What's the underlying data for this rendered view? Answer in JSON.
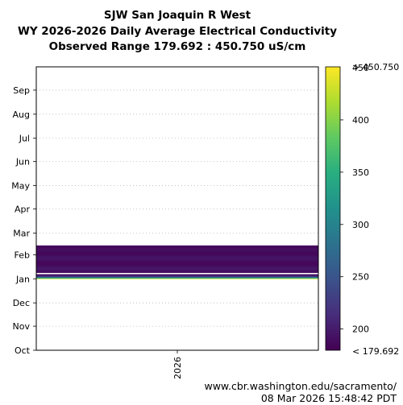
{
  "chart_data": {
    "type": "heatmap",
    "title_lines": [
      "SJW San Joaquin R West",
      "WY 2026-2026 Daily Average Electrical Conductivity",
      "Observed Range 179.692 : 450.750 uS/cm"
    ],
    "x_ticks": [
      "2026"
    ],
    "y_ticks": [
      "Oct",
      "Nov",
      "Dec",
      "Jan",
      "Feb",
      "Mar",
      "Apr",
      "May",
      "Jun",
      "Jul",
      "Aug",
      "Sep"
    ],
    "ylim_days": [
      0,
      365
    ],
    "grid": "horizontal dotted",
    "colormap": "viridis",
    "colorbar": {
      "vmin": 179.692,
      "vmax": 450.75,
      "ticks": [
        200,
        250,
        300,
        350,
        400
      ],
      "top_label": "> 450.750",
      "top_tick": "450",
      "bottom_label": "< 179.692"
    },
    "segments": [
      {
        "start_day": 92,
        "end_day": 98,
        "values": [
          440,
          405,
          370,
          330,
          300,
          270,
          245,
          225,
          212,
          205,
          200,
          198,
          196,
          195
        ]
      },
      {
        "start_day": 100,
        "end_day": 135,
        "values": [
          185,
          188,
          190,
          192,
          195,
          198,
          195,
          192,
          190,
          188,
          186,
          185,
          185,
          184,
          186,
          188,
          190,
          192,
          194,
          196,
          194,
          192,
          190,
          188,
          186,
          185,
          184,
          186,
          188,
          190,
          192,
          190,
          188,
          186,
          185,
          186
        ]
      }
    ]
  },
  "footer": {
    "url": "www.cbr.washington.edu/sacramento/",
    "timestamp": "08 Mar 2026 15:48:42 PDT"
  }
}
